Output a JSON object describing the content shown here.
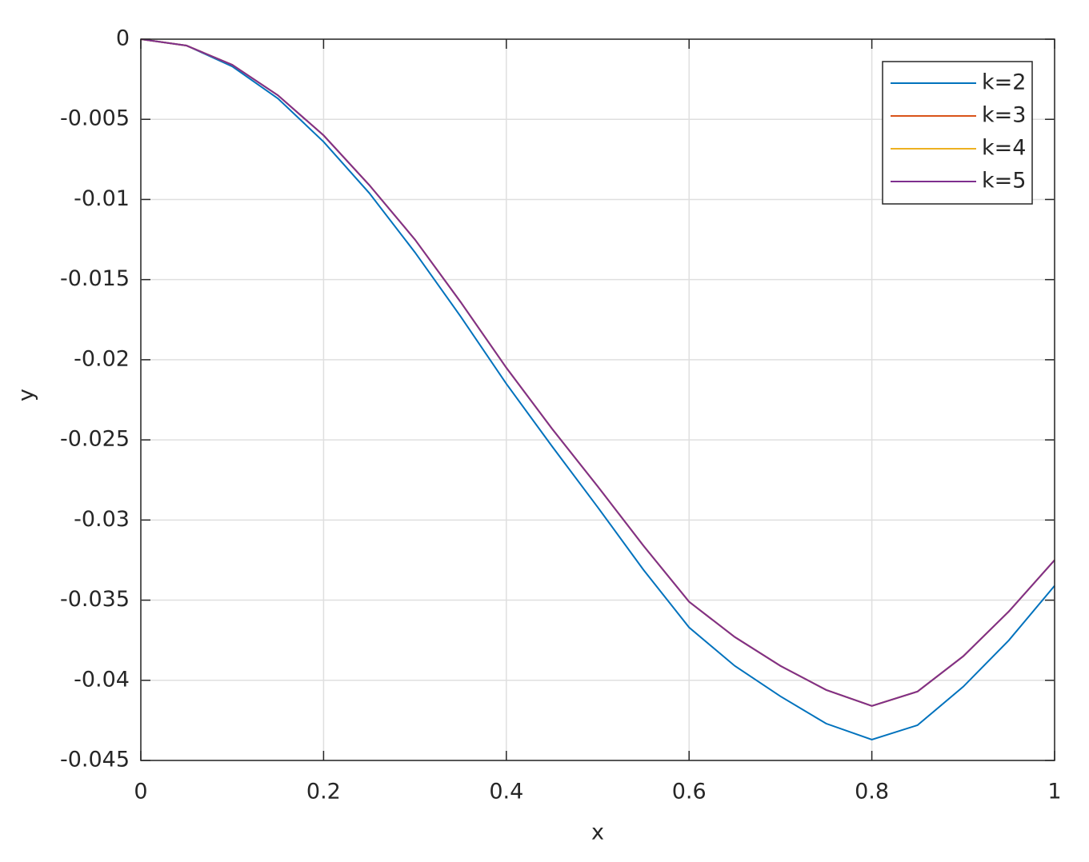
{
  "chart_data": {
    "type": "line",
    "x_label": "x",
    "y_label": "y",
    "x": [
      0,
      0.05,
      0.1,
      0.15,
      0.2,
      0.25,
      0.3,
      0.35,
      0.4,
      0.45,
      0.5,
      0.55,
      0.6,
      0.65,
      0.7,
      0.75,
      0.8,
      0.85,
      0.9,
      0.95,
      1
    ],
    "series": [
      {
        "name": "k=2",
        "color": "#0072bd",
        "values": [
          0,
          -0.0004,
          -0.0017,
          -0.0037,
          -0.0064,
          -0.0096,
          -0.0133,
          -0.0173,
          -0.0215,
          -0.0254,
          -0.0292,
          -0.0331,
          -0.0367,
          -0.0391,
          -0.041,
          -0.0427,
          -0.0437,
          -0.0428,
          -0.0404,
          -0.0375,
          -0.0341
        ]
      },
      {
        "name": "k=3",
        "color": "#d95319",
        "values": [
          0,
          -0.0004,
          -0.0016,
          -0.0035,
          -0.006,
          -0.0091,
          -0.0125,
          -0.0164,
          -0.0205,
          -0.0243,
          -0.0279,
          -0.0316,
          -0.0351,
          -0.0373,
          -0.0391,
          -0.0406,
          -0.0416,
          -0.0407,
          -0.0385,
          -0.0357,
          -0.0325
        ]
      },
      {
        "name": "k=4",
        "color": "#edb120",
        "values": [
          0,
          -0.0004,
          -0.0016,
          -0.0035,
          -0.006,
          -0.0091,
          -0.0125,
          -0.0164,
          -0.0205,
          -0.0243,
          -0.0279,
          -0.0316,
          -0.0351,
          -0.0373,
          -0.0391,
          -0.0406,
          -0.0416,
          -0.0407,
          -0.0385,
          -0.0357,
          -0.0325
        ]
      },
      {
        "name": "k=5",
        "color": "#7e2f8e",
        "values": [
          0,
          -0.0004,
          -0.0016,
          -0.0035,
          -0.006,
          -0.0091,
          -0.0125,
          -0.0164,
          -0.0205,
          -0.0243,
          -0.0279,
          -0.0316,
          -0.0351,
          -0.0373,
          -0.0391,
          -0.0406,
          -0.0416,
          -0.0407,
          -0.0385,
          -0.0357,
          -0.0325
        ]
      }
    ],
    "xlim": [
      0,
      1
    ],
    "xticks": [
      0,
      0.2,
      0.4,
      0.6,
      0.8,
      1
    ],
    "ylim": [
      -0.045,
      0
    ],
    "yticks": [
      0,
      -0.005,
      -0.01,
      -0.015,
      -0.02,
      -0.025,
      -0.03,
      -0.035,
      -0.04,
      -0.045
    ],
    "grid": true,
    "legend": "northeast"
  }
}
